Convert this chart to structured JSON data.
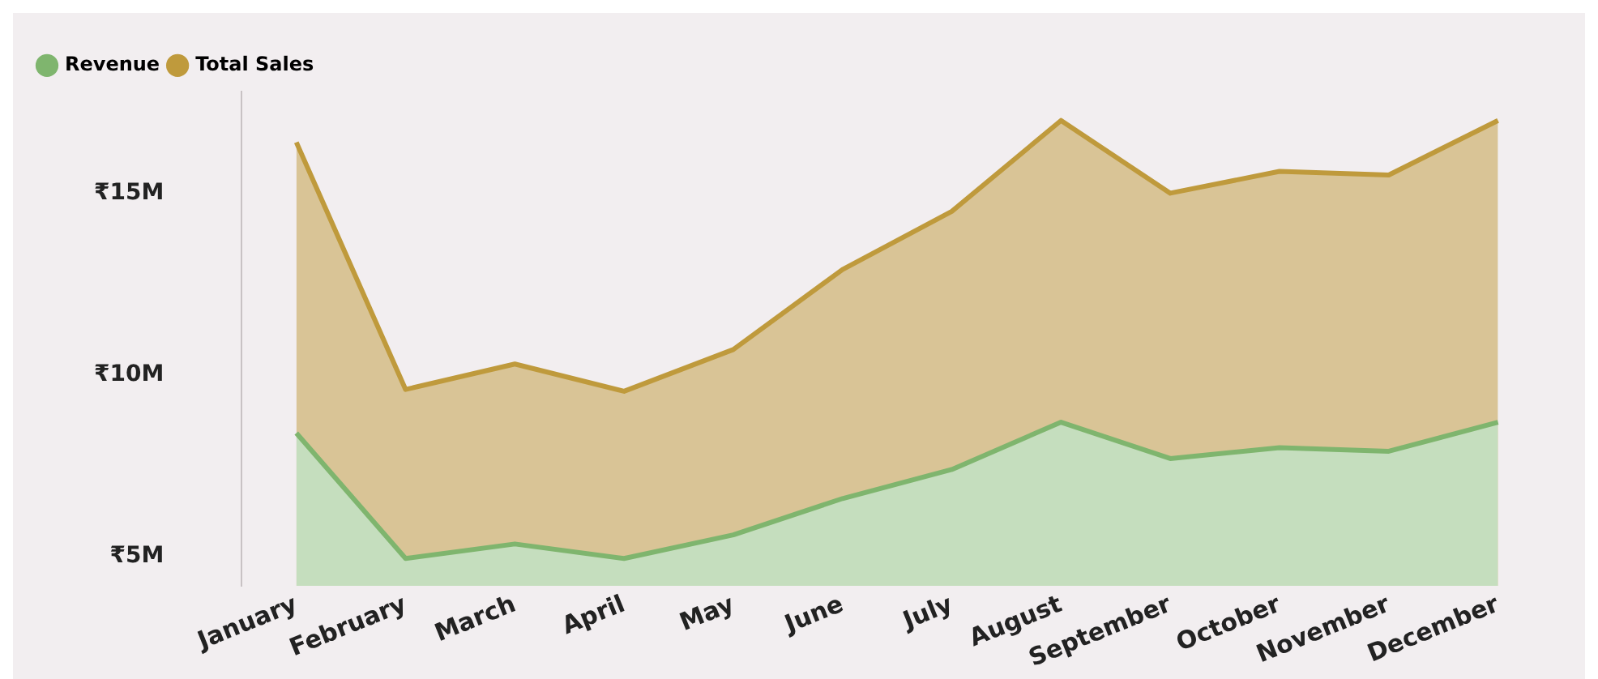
{
  "chart_data": {
    "type": "area",
    "categories": [
      "January",
      "February",
      "March",
      "April",
      "May",
      "June",
      "July",
      "August",
      "September",
      "October",
      "November",
      "December"
    ],
    "series": [
      {
        "name": "Revenue",
        "color": "#7fb56e",
        "values": [
          8.4,
          4.95,
          5.35,
          4.95,
          5.6,
          6.6,
          7.4,
          8.7,
          7.7,
          8.0,
          7.9,
          8.7
        ]
      },
      {
        "name": "Total Sales",
        "color": "#bf9a3c",
        "values": [
          16.4,
          9.6,
          10.3,
          9.55,
          10.7,
          12.9,
          14.5,
          17.0,
          15.0,
          15.6,
          15.5,
          17.0
        ]
      }
    ],
    "ylim": [
      4.2,
      17.8
    ],
    "yticks": [
      {
        "value": 5,
        "label": "₹5M"
      },
      {
        "value": 10,
        "label": "₹10M"
      },
      {
        "value": 15,
        "label": "₹15M"
      }
    ],
    "grid": false,
    "legend": "top left",
    "marker": "none"
  }
}
